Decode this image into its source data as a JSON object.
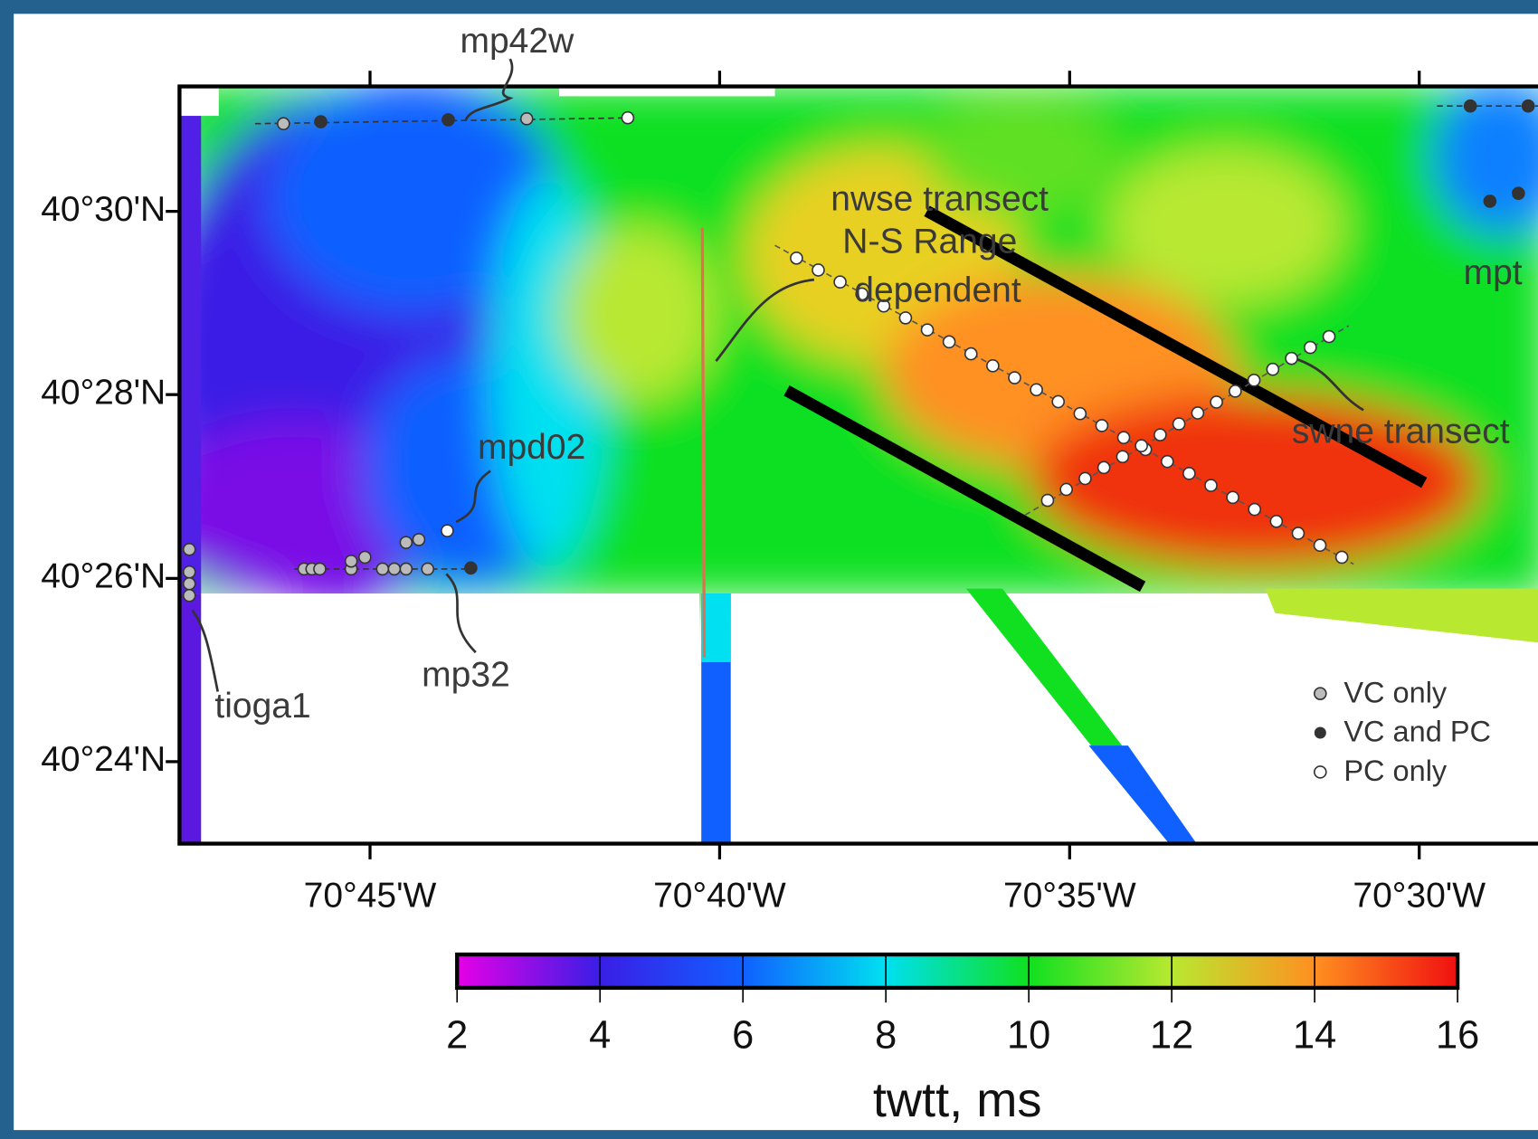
{
  "map": {
    "xlim": [
      -70.7954,
      -70.4717
    ],
    "ylim": [
      40.3851,
      40.5227
    ],
    "xticks": [
      {
        "value": -70.75,
        "label": "70°45'W"
      },
      {
        "value": -70.6667,
        "label": "70°40'W"
      },
      {
        "value": -70.5833,
        "label": "70°35'W"
      },
      {
        "value": -70.5,
        "label": "70°30'W"
      }
    ],
    "yticks": [
      {
        "value": 40.5,
        "label": "40°30'N"
      },
      {
        "value": 40.4667,
        "label": "40°28'N"
      },
      {
        "value": 40.4333,
        "label": "40°26'N"
      },
      {
        "value": 40.4,
        "label": "40°24'N"
      }
    ],
    "sites": {
      "mp42w": "mp42w",
      "mpd02": "mpd02",
      "mp32": "mp32",
      "tioga1": "tioga1",
      "mpt": "mpt"
    },
    "transects": {
      "nwse": "nwse transect",
      "ns1": "N-S Range",
      "ns2": "dependent",
      "swne": "swne transect"
    },
    "legend": [
      "VC only",
      "VC and PC",
      "PC only"
    ]
  },
  "colorbar": {
    "clim": [
      2,
      16
    ],
    "ticks": [
      2,
      4,
      6,
      8,
      10,
      12,
      14,
      16
    ],
    "colors": [
      "#e600e6",
      "#3a1ee6",
      "#1060ff",
      "#00e0f0",
      "#10e020",
      "#b8e830",
      "#ff9020",
      "#f01010"
    ],
    "label": "twtt, ms"
  }
}
